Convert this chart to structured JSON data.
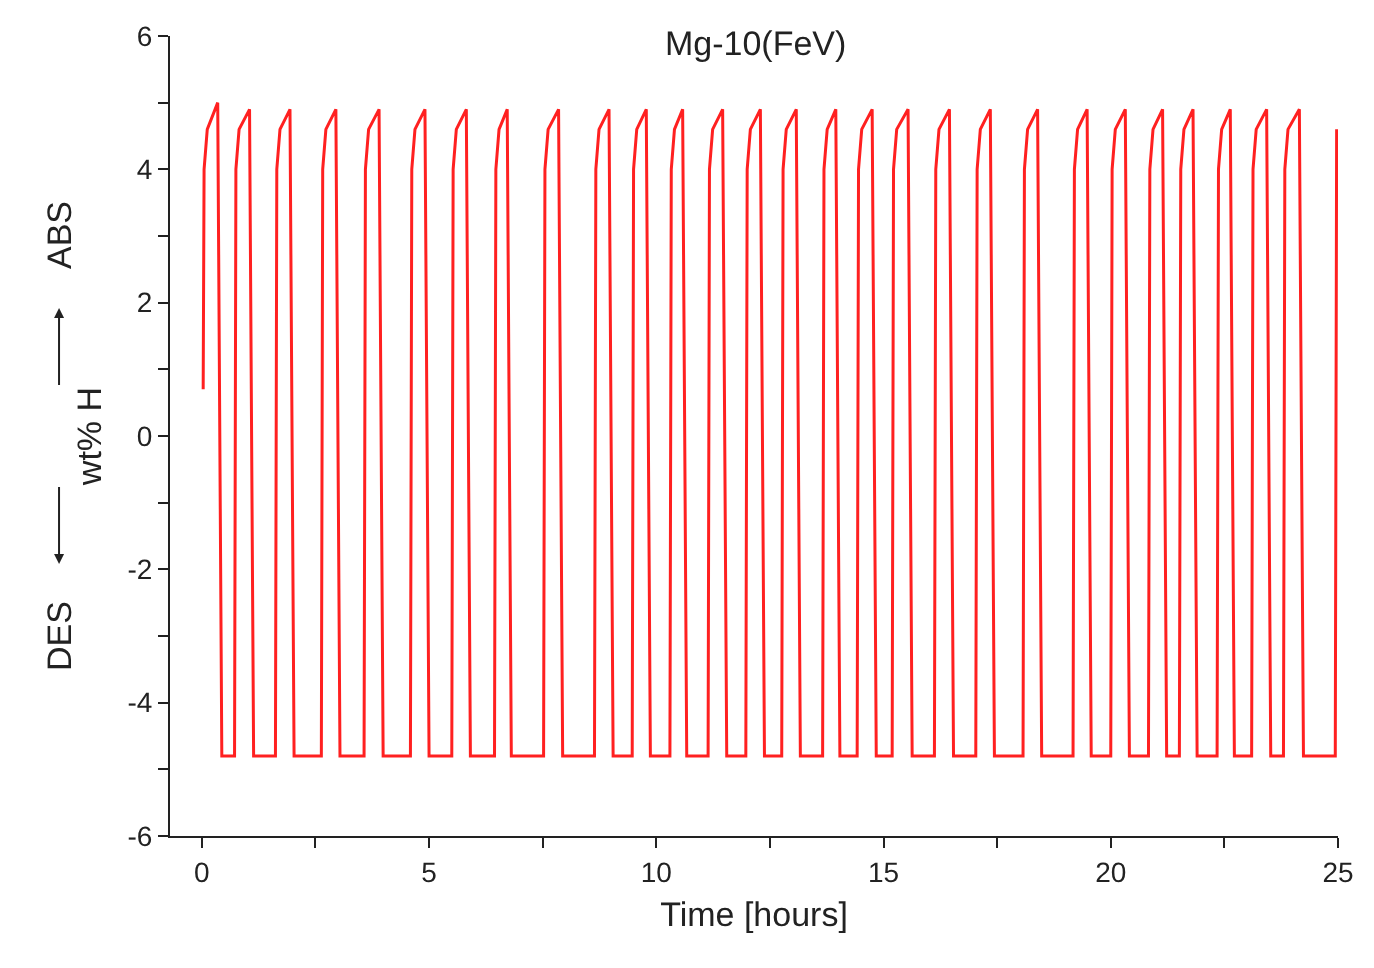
{
  "chart_data": {
    "type": "line",
    "title": "Mg-10(FeV)",
    "xlabel": "Time [hours]",
    "ylabel": "wt% H",
    "annotations": [
      "ABS",
      "DES"
    ],
    "x": [
      0.03,
      0.05,
      0.12,
      0.35,
      0.44,
      0.72,
      0.75,
      0.82,
      1.05,
      1.14,
      1.62,
      1.65,
      1.72,
      1.94,
      2.03,
      2.63,
      2.66,
      2.73,
      2.95,
      3.04,
      3.57,
      3.6,
      3.67,
      3.9,
      3.99,
      4.59,
      4.62,
      4.69,
      4.91,
      5.0,
      5.5,
      5.53,
      5.6,
      5.82,
      5.91,
      6.44,
      6.47,
      6.54,
      6.72,
      6.81,
      7.52,
      7.55,
      7.62,
      7.85,
      7.94,
      8.64,
      8.67,
      8.74,
      8.96,
      9.05,
      9.47,
      9.5,
      9.57,
      9.78,
      9.87,
      10.3,
      10.33,
      10.4,
      10.58,
      10.67,
      11.14,
      11.17,
      11.24,
      11.46,
      11.55,
      11.97,
      12.0,
      12.07,
      12.29,
      12.38,
      12.76,
      12.79,
      12.86,
      13.08,
      13.17,
      13.66,
      13.69,
      13.76,
      13.95,
      14.04,
      14.42,
      14.45,
      14.52,
      14.75,
      14.84,
      15.19,
      15.22,
      15.29,
      15.54,
      15.63,
      16.12,
      16.15,
      16.22,
      16.45,
      16.54,
      17.03,
      17.06,
      17.13,
      17.35,
      17.44,
      18.07,
      18.1,
      18.17,
      18.39,
      18.48,
      19.17,
      19.2,
      19.27,
      19.48,
      19.57,
      20.0,
      20.03,
      20.1,
      20.32,
      20.41,
      20.83,
      20.86,
      20.93,
      21.14,
      21.23,
      21.51,
      21.54,
      21.61,
      21.81,
      21.9,
      22.34,
      22.37,
      22.44,
      22.63,
      22.72,
      23.1,
      23.13,
      23.2,
      23.43,
      23.52,
      23.8,
      23.83,
      23.9,
      24.15,
      24.24,
      24.94,
      24.97
    ],
    "series": [
      {
        "color": "#ff2020",
        "values": [
          0.7,
          4.0,
          4.6,
          5.0,
          -4.8,
          -4.8,
          4.0,
          4.6,
          4.9,
          -4.8,
          -4.8,
          4.0,
          4.6,
          4.9,
          -4.8,
          -4.8,
          4.0,
          4.6,
          4.9,
          -4.8,
          -4.8,
          4.0,
          4.6,
          4.9,
          -4.8,
          -4.8,
          4.0,
          4.6,
          4.9,
          -4.8,
          -4.8,
          4.0,
          4.6,
          4.9,
          -4.8,
          -4.8,
          4.0,
          4.6,
          4.9,
          -4.8,
          -4.8,
          4.0,
          4.6,
          4.9,
          -4.8,
          -4.8,
          4.0,
          4.6,
          4.9,
          -4.8,
          -4.8,
          4.0,
          4.6,
          4.9,
          -4.8,
          -4.8,
          4.0,
          4.6,
          4.9,
          -4.8,
          -4.8,
          4.0,
          4.6,
          4.9,
          -4.8,
          -4.8,
          4.0,
          4.6,
          4.9,
          -4.8,
          -4.8,
          4.0,
          4.6,
          4.9,
          -4.8,
          -4.8,
          4.0,
          4.6,
          4.9,
          -4.8,
          -4.8,
          4.0,
          4.6,
          4.9,
          -4.8,
          -4.8,
          4.0,
          4.6,
          4.9,
          -4.8,
          -4.8,
          4.0,
          4.6,
          4.9,
          -4.8,
          -4.8,
          4.0,
          4.6,
          4.9,
          -4.8,
          -4.8,
          4.0,
          4.6,
          4.9,
          -4.8,
          -4.8,
          4.0,
          4.6,
          4.9,
          -4.8,
          -4.8,
          4.0,
          4.6,
          4.9,
          -4.8,
          -4.8,
          4.0,
          4.6,
          4.9,
          -4.8,
          -4.8,
          4.0,
          4.6,
          4.9,
          -4.8,
          -4.8,
          4.0,
          4.6,
          4.9,
          -4.8,
          -4.8,
          4.0,
          4.6,
          4.9,
          -4.8,
          -4.8,
          4.0,
          4.6,
          4.9,
          -4.8,
          -4.8,
          4.6
        ]
      }
    ],
    "xlim": [
      -0.7,
      25
    ],
    "ylim": [
      -6,
      6
    ],
    "xticks": [
      0,
      {
        "value": 2.5,
        "label": null
      },
      5,
      {
        "value": 7.5,
        "label": null
      },
      10,
      {
        "value": 12.5,
        "label": null
      },
      15,
      {
        "value": 17.5,
        "label": null
      },
      20,
      {
        "value": 22.5,
        "label": null
      },
      25
    ],
    "yticks": [
      -6,
      {
        "value": -5,
        "label": null
      },
      -4,
      {
        "value": -3,
        "label": null
      },
      -2,
      {
        "value": -1,
        "label": null
      },
      0,
      {
        "value": 1,
        "label": null
      },
      2,
      {
        "value": 3,
        "label": null
      },
      4,
      {
        "value": 5,
        "label": null
      },
      6
    ],
    "grid": false,
    "marker": "none",
    "line_style": "solid"
  }
}
